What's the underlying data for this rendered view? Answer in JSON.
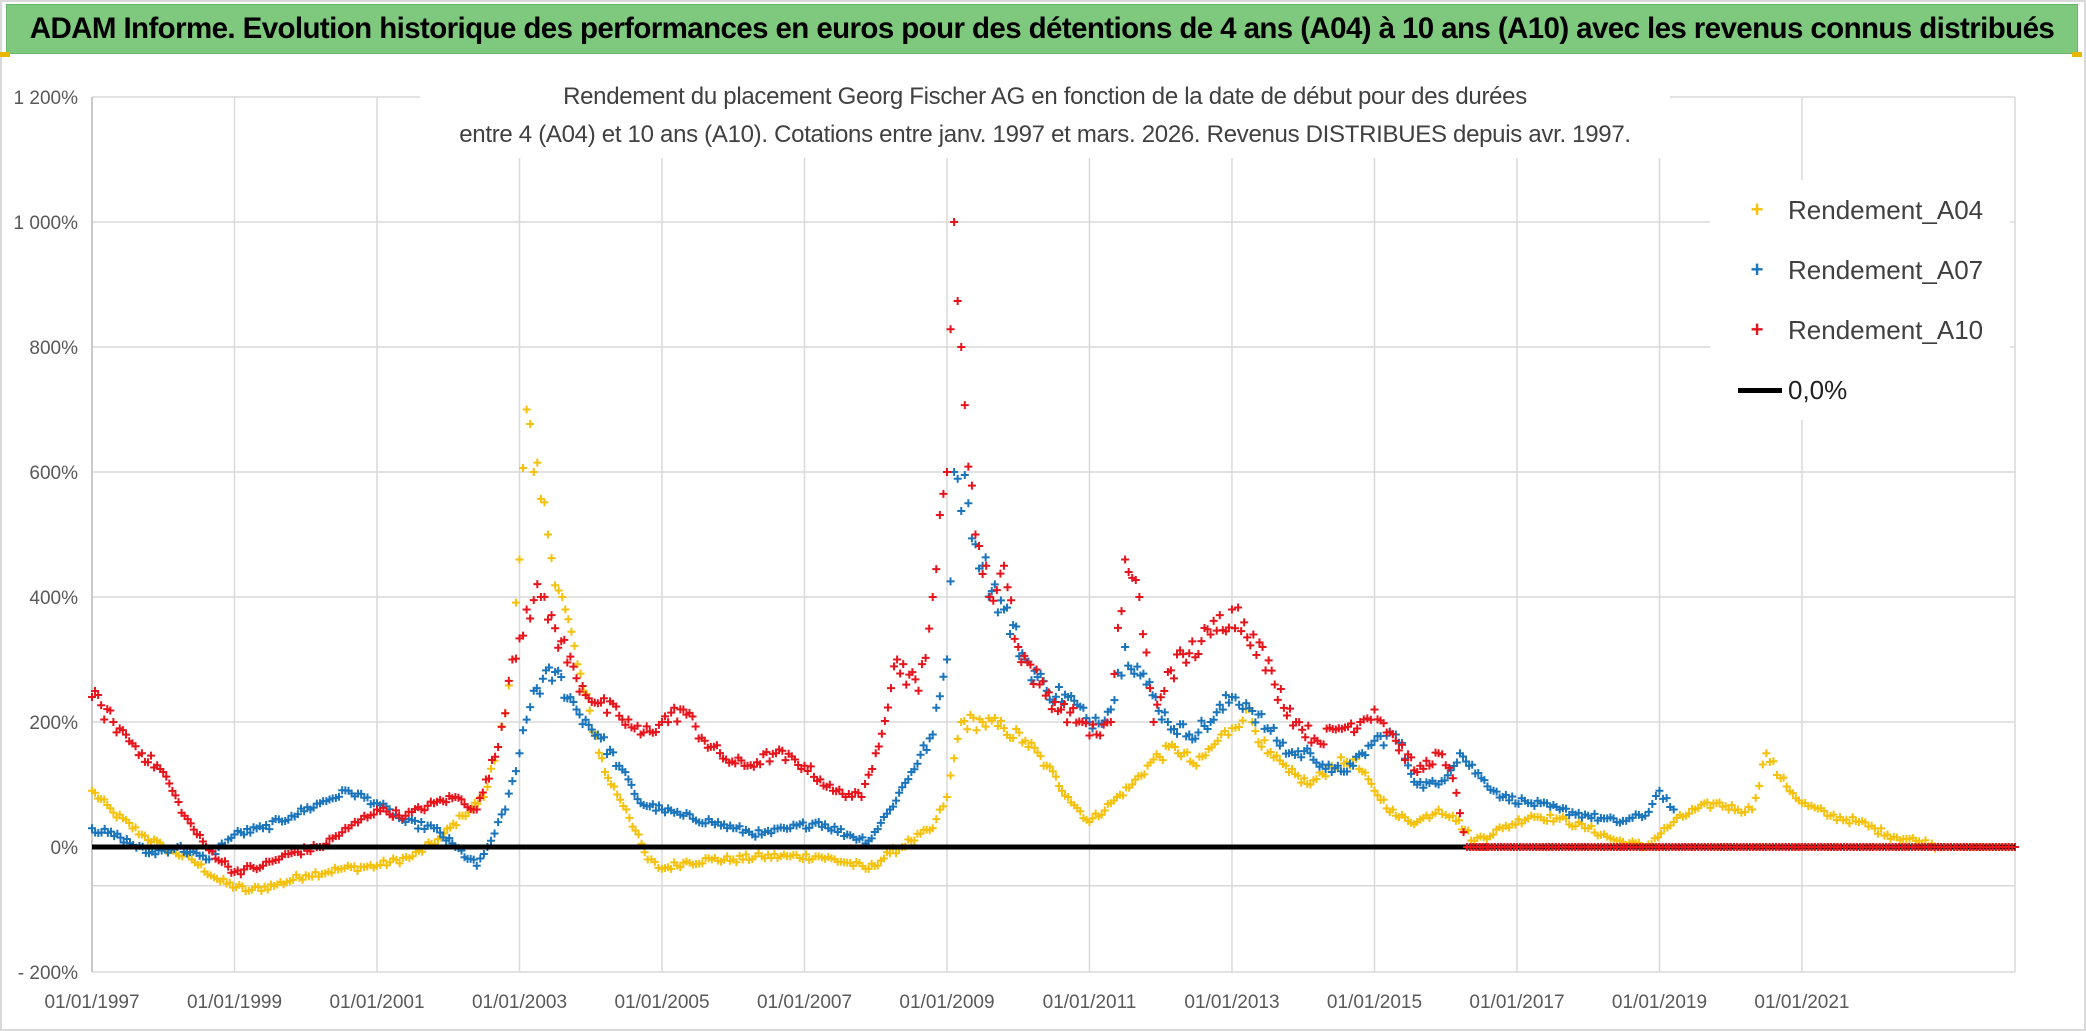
{
  "banner": {
    "text": "ADAM Informe. Evolution historique des performances en euros pour des détentions de 4 ans (A04) à 10 ans (A10) avec les revenus connus distribués"
  },
  "colors": {
    "banner_bg": "#7fc97f",
    "a04": "#f5c10a",
    "a07": "#1a75bc",
    "a10": "#e8141c",
    "zero_line": "#000000"
  },
  "chart_data": {
    "type": "scatter",
    "title_line1": "Rendement du placement Georg Fischer AG en fonction de la date de début pour des durées",
    "title_line2": "entre 4 (A04) et 10 ans (A10). Cotations entre janv. 1997 et mars. 2026. Revenus DISTRIBUES depuis avr. 1997.",
    "xlabel": "",
    "ylabel": "",
    "xlim": [
      1997.0,
      2023.99
    ],
    "ylim": [
      -200,
      1200
    ],
    "y_ticks": [
      -200,
      0,
      200,
      400,
      600,
      800,
      1000,
      1200
    ],
    "y_tick_labels": [
      "- 200%",
      "0%",
      "200%",
      "400%",
      "600%",
      "800%",
      "1 000%",
      "1 200%"
    ],
    "x_ticks": [
      1997,
      1999,
      2001,
      2003,
      2005,
      2007,
      2009,
      2011,
      2013,
      2015,
      2017,
      2019,
      2021
    ],
    "x_tick_labels": [
      "01/01/1997",
      "01/01/1999",
      "01/01/2001",
      "01/01/2003",
      "01/01/2005",
      "01/01/2007",
      "01/01/2009",
      "01/01/2011",
      "01/01/2013",
      "01/01/2015",
      "01/01/2017",
      "01/01/2019",
      "01/01/2021"
    ],
    "grid": true,
    "legend_position": "top-right",
    "series": [
      {
        "name": "Rendement_A04",
        "color": "#f5c10a",
        "marker": "+",
        "x": [
          1997.0,
          1997.3,
          1997.7,
          1998.0,
          1998.4,
          1998.8,
          1999.2,
          1999.6,
          2000.0,
          2000.5,
          2001.0,
          2001.5,
          2001.9,
          2002.2,
          2002.5,
          2002.7,
          2002.9,
          2003.0,
          2003.1,
          2003.2,
          2003.4,
          2003.6,
          2003.9,
          2004.2,
          2004.5,
          2004.8,
          2005.0,
          2005.3,
          2005.7,
          2006.0,
          2006.4,
          2006.8,
          2007.2,
          2007.6,
          2007.9,
          2008.2,
          2008.5,
          2008.8,
          2009.0,
          2009.2,
          2009.5,
          2009.8,
          2010.1,
          2010.4,
          2010.7,
          2011.0,
          2011.3,
          2011.6,
          2011.9,
          2012.2,
          2012.5,
          2012.8,
          2013.0,
          2013.2,
          2013.5,
          2013.8,
          2014.1,
          2014.4,
          2014.7,
          2015.0,
          2015.3,
          2015.6,
          2015.9,
          2016.1,
          2016.4,
          2016.8,
          2017.2,
          2017.6,
          2018.0,
          2018.4,
          2018.8,
          2019.2,
          2019.5,
          2019.8,
          2020.1,
          2020.3,
          2020.5,
          2020.7,
          2021.0,
          2021.4,
          2021.8,
          2022.2,
          2022.6,
          2023.0,
          2023.4,
          2023.99
        ],
        "values": [
          90,
          55,
          20,
          0,
          -20,
          -55,
          -70,
          -60,
          -45,
          -35,
          -30,
          -15,
          15,
          50,
          80,
          160,
          300,
          460,
          700,
          600,
          500,
          400,
          250,
          120,
          60,
          -20,
          -35,
          -25,
          -20,
          -20,
          -15,
          -15,
          -15,
          -25,
          -35,
          -10,
          10,
          30,
          80,
          200,
          200,
          190,
          170,
          130,
          80,
          40,
          70,
          100,
          140,
          160,
          130,
          170,
          190,
          220,
          150,
          120,
          100,
          130,
          140,
          90,
          50,
          40,
          60,
          50,
          10,
          30,
          50,
          45,
          30,
          10,
          0,
          40,
          60,
          70,
          60,
          60,
          150,
          110,
          70,
          50,
          40,
          20,
          10,
          0,
          0,
          0
        ]
      },
      {
        "name": "Rendement_A07",
        "color": "#1a75bc",
        "marker": "+",
        "x": [
          1997.0,
          1997.4,
          1997.8,
          1998.2,
          1998.6,
          1999.0,
          1999.4,
          1999.8,
          2000.2,
          2000.6,
          2001.0,
          2001.4,
          2001.8,
          2002.1,
          2002.4,
          2002.6,
          2002.8,
          2003.0,
          2003.2,
          2003.5,
          2003.8,
          2004.1,
          2004.4,
          2004.7,
          2005.0,
          2005.3,
          2005.7,
          2006.0,
          2006.4,
          2006.8,
          2007.2,
          2007.6,
          2007.9,
          2008.2,
          2008.5,
          2008.8,
          2009.0,
          2009.1,
          2009.3,
          2009.5,
          2009.8,
          2010.1,
          2010.4,
          2010.7,
          2011.0,
          2011.3,
          2011.5,
          2011.8,
          2012.1,
          2012.4,
          2012.7,
          2013.0,
          2013.2,
          2013.5,
          2013.8,
          2014.1,
          2014.4,
          2014.7,
          2015.0,
          2015.3,
          2015.6,
          2015.9,
          2016.2,
          2016.5,
          2016.8,
          2017.2,
          2017.6,
          2018.0,
          2018.4,
          2018.8,
          2019.0,
          2019.2
        ],
        "values": [
          30,
          15,
          -10,
          0,
          -20,
          20,
          30,
          50,
          70,
          90,
          70,
          40,
          30,
          0,
          -30,
          10,
          60,
          150,
          250,
          280,
          220,
          180,
          130,
          70,
          60,
          50,
          40,
          30,
          20,
          30,
          40,
          20,
          10,
          60,
          120,
          180,
          300,
          600,
          550,
          450,
          380,
          300,
          250,
          240,
          200,
          220,
          320,
          260,
          200,
          180,
          200,
          240,
          230,
          190,
          150,
          150,
          120,
          130,
          170,
          180,
          100,
          100,
          150,
          110,
          80,
          70,
          60,
          50,
          40,
          50,
          90,
          60
        ]
      },
      {
        "name": "Rendement_A10",
        "color": "#e8141c",
        "marker": "+",
        "x": [
          1997.0,
          1997.3,
          1997.7,
          1998.0,
          1998.3,
          1998.6,
          1999.0,
          1999.4,
          1999.8,
          2000.2,
          2000.6,
          2001.0,
          2001.4,
          2001.8,
          2002.1,
          2002.4,
          2002.7,
          2002.9,
          2003.1,
          2003.3,
          2003.5,
          2003.8,
          2004.1,
          2004.4,
          2004.7,
          2005.0,
          2005.3,
          2005.6,
          2005.9,
          2006.2,
          2006.6,
          2007.0,
          2007.4,
          2007.8,
          2008.0,
          2008.3,
          2008.6,
          2008.8,
          2009.0,
          2009.1,
          2009.2,
          2009.4,
          2009.6,
          2009.8,
          2010.0,
          2010.3,
          2010.6,
          2010.9,
          2011.1,
          2011.3,
          2011.5,
          2011.7,
          2011.9,
          2012.1,
          2012.4,
          2012.7,
          2013.0,
          2013.3,
          2013.6,
          2013.9,
          2014.2,
          2014.5,
          2014.8,
          2015.0,
          2015.3,
          2015.6,
          2015.9,
          2016.1,
          2016.3,
          2016.6,
          2017.0,
          2017.5,
          2018.0,
          2018.5,
          2019.0,
          2019.5,
          2020.0,
          2020.5,
          2021.0,
          2021.5,
          2022.0,
          2022.5,
          2023.0,
          2023.5,
          2023.99
        ],
        "values": [
          240,
          200,
          150,
          120,
          50,
          0,
          -40,
          -30,
          -10,
          0,
          30,
          60,
          50,
          70,
          80,
          60,
          160,
          300,
          380,
          400,
          350,
          270,
          230,
          210,
          180,
          200,
          220,
          170,
          140,
          130,
          150,
          130,
          90,
          80,
          150,
          300,
          250,
          400,
          600,
          1000,
          800,
          500,
          400,
          450,
          320,
          260,
          220,
          200,
          180,
          200,
          460,
          400,
          200,
          280,
          310,
          340,
          380,
          340,
          260,
          200,
          170,
          190,
          200,
          220,
          170,
          120,
          150,
          110,
          0,
          0,
          0,
          0,
          0,
          0,
          0,
          0,
          0,
          0,
          0,
          0,
          0,
          0,
          0,
          0,
          0
        ]
      }
    ],
    "zero_line": {
      "name": "0,0%",
      "value": 0,
      "color": "#000000"
    }
  }
}
